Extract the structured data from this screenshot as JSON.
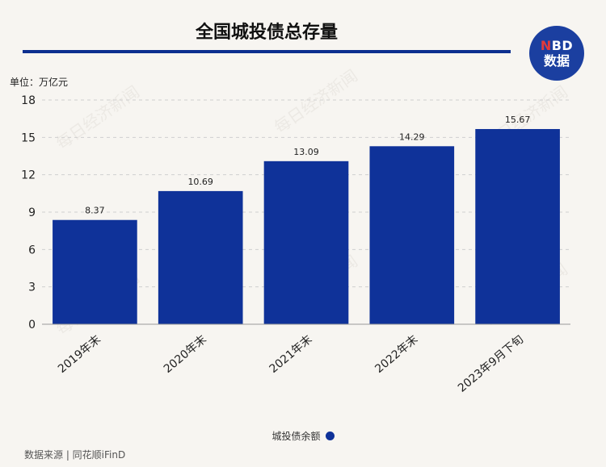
{
  "header": {
    "title": "全国城投债总存量",
    "unit_label": "单位：万亿元"
  },
  "logo": {
    "line1_accent": "N",
    "line1_rest": "BD",
    "line2": "数据"
  },
  "watermark_text": "每日经济新闻",
  "source_text": "数据来源 | 同花顺iFinD",
  "colors": {
    "bar": "#0f3299",
    "accent_rule": "#0d2f8f",
    "background": "#f7f5f1"
  },
  "chart_data": {
    "type": "bar",
    "title": "全国城投债总存量",
    "ylabel": "单位：万亿元",
    "xlabel": "",
    "categories": [
      "2019年末",
      "2020年末",
      "2021年末",
      "2022年末",
      "2023年9月下旬"
    ],
    "series": [
      {
        "name": "城投债余额",
        "values": [
          8.37,
          10.69,
          13.09,
          14.29,
          15.67
        ]
      }
    ],
    "data_labels": [
      "8.37",
      "10.69",
      "13.09",
      "14.29",
      "15.67"
    ],
    "ylim": [
      0,
      18
    ],
    "yticks": [
      0,
      3,
      6,
      9,
      12,
      15,
      18
    ],
    "grid": "horizontal dashed",
    "legend_position": "bottom-center"
  }
}
